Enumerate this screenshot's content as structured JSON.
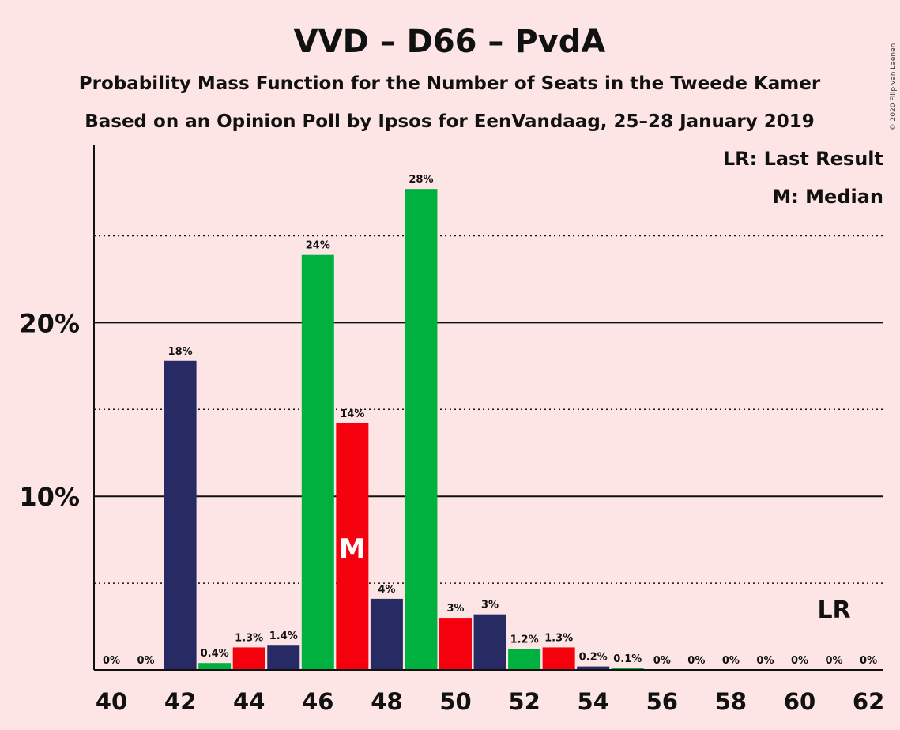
{
  "title": "VVD – D66 – PvdA",
  "subtitle1": "Probability Mass Function for the Number of Seats in the Tweede Kamer",
  "subtitle2": "Based on an Opinion Poll by Ipsos for EenVandaag, 25–28 January 2019",
  "copyright": "© 2020 Filip van Laenen",
  "legend": {
    "lr": "LR: Last Result",
    "m": "M: Median"
  },
  "markers": {
    "median_label": "M",
    "last_result_label": "LR",
    "median_seat": 47,
    "last_result_seat": 61
  },
  "colors": {
    "background": "#fde5e6",
    "navy": "#282a64",
    "green": "#00b140",
    "red": "#f5000d",
    "axis": "#111111"
  },
  "chart_data": {
    "type": "bar",
    "x": [
      40,
      41,
      42,
      43,
      44,
      45,
      46,
      47,
      48,
      49,
      50,
      51,
      52,
      53,
      54,
      55,
      56,
      57,
      58,
      59,
      60,
      61,
      62
    ],
    "values": [
      0,
      0,
      17.8,
      0.4,
      1.3,
      1.4,
      23.9,
      14.2,
      4.1,
      27.7,
      3.0,
      3.2,
      1.2,
      1.3,
      0.2,
      0.1,
      0,
      0,
      0,
      0,
      0,
      0,
      0
    ],
    "labels": [
      "0%",
      "0%",
      "18%",
      "0.4%",
      "1.3%",
      "1.4%",
      "24%",
      "14%",
      "4%",
      "28%",
      "3%",
      "3%",
      "1.2%",
      "1.3%",
      "0.2%",
      "0.1%",
      "0%",
      "0%",
      "0%",
      "0%",
      "0%",
      "0%",
      "0%"
    ],
    "bar_colors": [
      "navy",
      "green",
      "navy",
      "green",
      "red",
      "navy",
      "green",
      "red",
      "navy",
      "green",
      "red",
      "navy",
      "green",
      "red",
      "navy",
      "green",
      "red",
      "navy",
      "green",
      "red",
      "navy",
      "green",
      "red"
    ],
    "x_ticks": [
      40,
      42,
      44,
      46,
      48,
      50,
      52,
      54,
      56,
      58,
      60,
      62
    ],
    "y_ticks": [
      {
        "value": 10,
        "label": "10%",
        "style": "solid"
      },
      {
        "value": 20,
        "label": "20%",
        "style": "solid"
      }
    ],
    "y_minor_gridlines": [
      5,
      15,
      25
    ],
    "ylim": [
      0,
      30
    ]
  }
}
